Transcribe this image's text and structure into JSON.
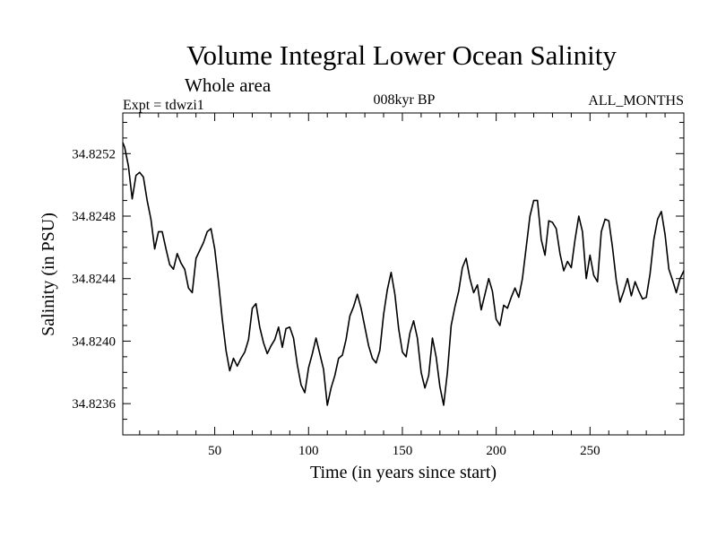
{
  "chart_data": {
    "type": "line",
    "title": "Volume Integral Lower Ocean Salinity",
    "subtitle": "Whole area",
    "expt_label": "Expt = tdwzi1",
    "period_label": "008kyr BP",
    "months_label": "ALL_MONTHS",
    "xlabel": "Time (in years since start)",
    "ylabel": "Salinity (in PSU)",
    "xlim": [
      1,
      300
    ],
    "ylim": [
      34.8234,
      34.82546
    ],
    "x_ticks": [
      50,
      100,
      150,
      200,
      250
    ],
    "x_tick_labels": [
      "50",
      "100",
      "150",
      "200",
      "250"
    ],
    "y_ticks": [
      34.8236,
      34.824,
      34.8244,
      34.8248,
      34.8252
    ],
    "y_tick_labels": [
      "34.8236",
      "34.8240",
      "34.8244",
      "34.8248",
      "34.8252"
    ],
    "series": [
      {
        "name": "Salinity",
        "x": [
          1,
          2,
          4,
          6,
          8,
          10,
          12,
          14,
          16,
          18,
          20,
          22,
          24,
          26,
          28,
          30,
          32,
          34,
          36,
          38,
          40,
          42,
          44,
          46,
          48,
          50,
          52,
          54,
          56,
          58,
          60,
          62,
          64,
          66,
          68,
          70,
          72,
          74,
          76,
          78,
          80,
          82,
          84,
          86,
          88,
          90,
          92,
          94,
          96,
          98,
          100,
          102,
          104,
          106,
          108,
          110,
          112,
          114,
          116,
          118,
          120,
          122,
          124,
          126,
          128,
          130,
          132,
          134,
          136,
          138,
          140,
          142,
          144,
          146,
          148,
          150,
          152,
          154,
          156,
          158,
          160,
          162,
          164,
          166,
          168,
          170,
          172,
          174,
          176,
          178,
          180,
          182,
          184,
          186,
          188,
          190,
          192,
          194,
          196,
          198,
          200,
          202,
          204,
          206,
          208,
          210,
          212,
          214,
          216,
          218,
          220,
          222,
          224,
          226,
          228,
          230,
          232,
          234,
          236,
          238,
          240,
          242,
          244,
          246,
          248,
          250,
          252,
          254,
          256,
          258,
          260,
          262,
          264,
          266,
          268,
          270,
          272,
          274,
          276,
          278,
          280,
          282,
          284,
          286,
          288,
          290,
          292,
          294,
          296,
          298,
          300
        ],
        "values": [
          34.82527,
          34.82524,
          34.82512,
          34.82491,
          34.82506,
          34.82508,
          34.82505,
          34.8249,
          34.82478,
          34.82459,
          34.8247,
          34.8247,
          34.82459,
          34.82449,
          34.82446,
          34.82456,
          34.8245,
          34.82446,
          34.82434,
          34.82431,
          34.82453,
          34.82458,
          34.82463,
          34.8247,
          34.82472,
          34.82459,
          34.82438,
          34.82414,
          34.82394,
          34.82381,
          34.82389,
          34.82384,
          34.82389,
          34.82393,
          34.82401,
          34.82421,
          34.82424,
          34.82409,
          34.82399,
          34.82392,
          34.82397,
          34.82401,
          34.82409,
          34.82396,
          34.82408,
          34.82409,
          34.82402,
          34.82385,
          34.82372,
          34.82367,
          34.82383,
          34.82392,
          34.82402,
          34.82392,
          34.82382,
          34.82359,
          34.8237,
          34.82378,
          34.82389,
          34.82391,
          34.82401,
          34.82416,
          34.82422,
          34.8243,
          34.82421,
          34.82409,
          34.82397,
          34.82389,
          34.82386,
          34.82394,
          34.82417,
          34.82433,
          34.82444,
          34.8243,
          34.82408,
          34.82393,
          34.8239,
          34.82405,
          34.82413,
          34.82402,
          34.8238,
          34.8237,
          34.82378,
          34.82402,
          34.8239,
          34.82371,
          34.82359,
          34.8238,
          34.8241,
          34.82422,
          34.82432,
          34.82447,
          34.82453,
          34.8244,
          34.82431,
          34.82436,
          34.8242,
          34.8243,
          34.8244,
          34.82432,
          34.82414,
          34.8241,
          34.82423,
          34.82421,
          34.82428,
          34.82434,
          34.82428,
          34.8244,
          34.8246,
          34.8248,
          34.8249,
          34.8249,
          34.82465,
          34.82455,
          34.82477,
          34.82476,
          34.82472,
          34.82456,
          34.82445,
          34.82451,
          34.82447,
          34.82465,
          34.8248,
          34.8247,
          34.8244,
          34.82455,
          34.82442,
          34.82438,
          34.8247,
          34.82478,
          34.82477,
          34.8246,
          34.82439,
          34.82425,
          34.82432,
          34.8244,
          34.82429,
          34.82438,
          34.82432,
          34.82427,
          34.82428,
          34.82443,
          34.82465,
          34.82478,
          34.82483,
          34.82468,
          34.82446,
          34.82439,
          34.82431,
          34.8244,
          34.82445
        ]
      }
    ]
  }
}
